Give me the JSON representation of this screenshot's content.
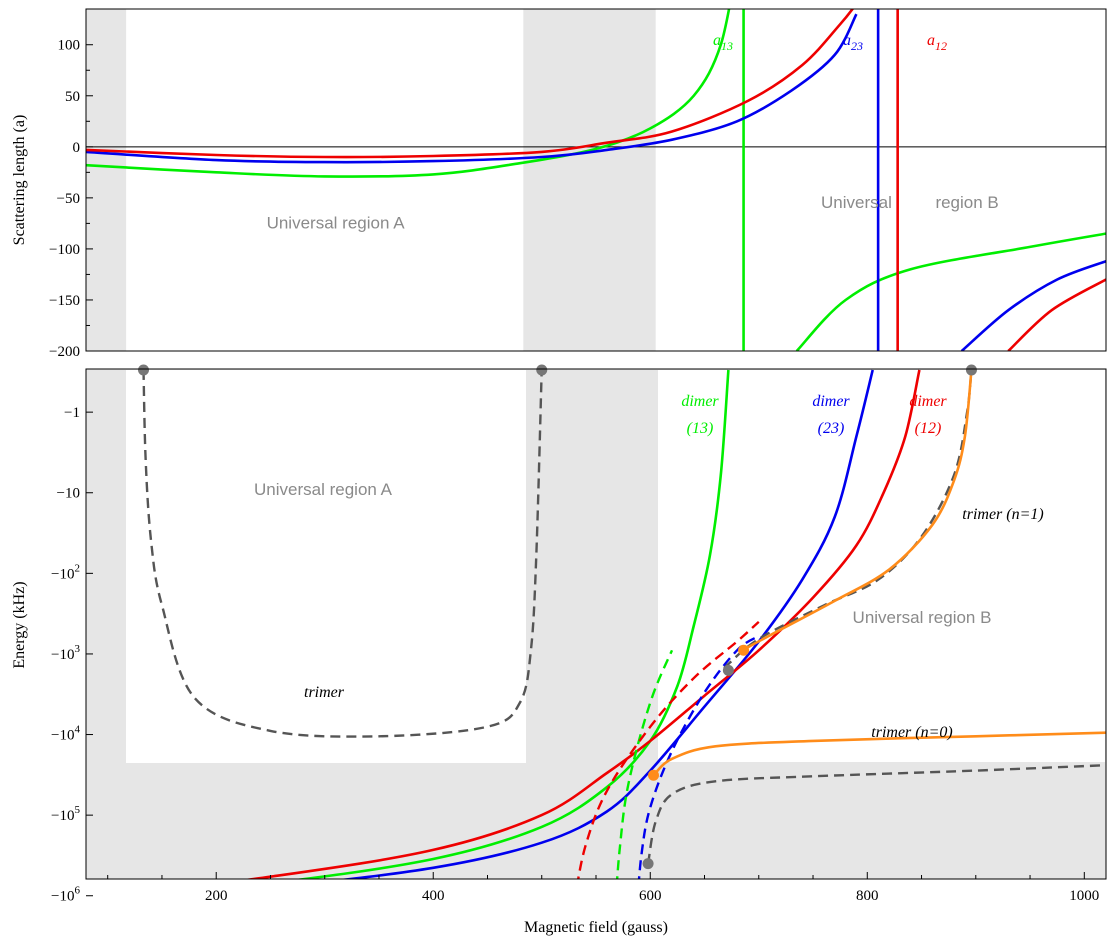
{
  "chart_data": [
    {
      "type": "line",
      "ylabel": "Scattering length (a)",
      "xlim": [
        80,
        1020
      ],
      "ylim": [
        -200,
        135
      ],
      "yticks": [
        100,
        50,
        0,
        -50,
        -100,
        -150,
        -200
      ],
      "grid": false,
      "shaded_x_ranges": [
        [
          80,
          117
        ],
        [
          483,
          605
        ]
      ],
      "region_labels": [
        {
          "text": "Universal region A",
          "x": 310,
          "y": -80
        },
        {
          "text": "Universal",
          "x": 790,
          "y": -60
        },
        {
          "text": "region B",
          "x": 892,
          "y": -60
        }
      ],
      "series": [
        {
          "name": "a13",
          "color": "#00ee00",
          "pole": 686,
          "left": [
            [
              80,
              -18
            ],
            [
              200,
              -25
            ],
            [
              300,
              -29
            ],
            [
              400,
              -27
            ],
            [
              480,
              -16
            ],
            [
              550,
              -2
            ],
            [
              600,
              18
            ],
            [
              640,
              50
            ],
            [
              665,
              100
            ],
            [
              680,
              180
            ]
          ],
          "right": [
            [
              735,
              -200
            ],
            [
              780,
              -150
            ],
            [
              840,
              -120
            ],
            [
              950,
              -98
            ],
            [
              1020,
              -85
            ]
          ]
        },
        {
          "name": "a23",
          "color": "#0000ee",
          "pole": 810,
          "left": [
            [
              80,
              -5
            ],
            [
              200,
              -13
            ],
            [
              300,
              -15
            ],
            [
              400,
              -14
            ],
            [
              500,
              -10
            ],
            [
              560,
              -3
            ],
            [
              620,
              7
            ],
            [
              680,
              25
            ],
            [
              730,
              55
            ],
            [
              770,
              90
            ],
            [
              790,
              130
            ]
          ],
          "right": [
            [
              887,
              -200
            ],
            [
              930,
              -160
            ],
            [
              975,
              -130
            ],
            [
              1020,
              -112
            ]
          ]
        },
        {
          "name": "a12",
          "color": "#ee0000",
          "pole": 828,
          "left": [
            [
              80,
              -3
            ],
            [
              200,
              -8
            ],
            [
              300,
              -10
            ],
            [
              400,
              -9
            ],
            [
              500,
              -5
            ],
            [
              560,
              4
            ],
            [
              620,
              15
            ],
            [
              690,
              45
            ],
            [
              740,
              80
            ],
            [
              775,
              120
            ],
            [
              790,
              140
            ]
          ],
          "right": [
            [
              930,
              -200
            ],
            [
              970,
              -160
            ],
            [
              1020,
              -130
            ]
          ]
        }
      ],
      "labels": [
        {
          "text": "a",
          "sub": "13",
          "color": "#00ee00"
        },
        {
          "text": "a",
          "sub": "23",
          "color": "#0000ee"
        },
        {
          "text": "a",
          "sub": "12",
          "color": "#ee0000"
        }
      ]
    },
    {
      "type": "line",
      "xlabel": "Magnetic field (gauss)",
      "ylabel": "Energy (kHz)",
      "xlim": [
        80,
        1020
      ],
      "y_scale": "symlog (energy is negative, magnitude logarithmic)",
      "xticks": [
        200,
        400,
        600,
        800,
        1000
      ],
      "yticks": [
        "-1",
        "-10",
        "-10^2",
        "-10^3",
        "-10^4",
        "-10^5",
        "-10^6"
      ],
      "grid": false,
      "region_labels": [
        "Universal region A",
        "Universal region B"
      ],
      "series": [
        {
          "name": "dimer (13)",
          "color": "#00ee00",
          "style": "solid",
          "points": [
            [
              80,
              -1200000.0
            ],
            [
              250,
              -700000.0
            ],
            [
              400,
              -350000.0
            ],
            [
              500,
              -140000.0
            ],
            [
              560,
              -45000.0
            ],
            [
              600,
              -12000.0
            ],
            [
              625,
              -2500
            ],
            [
              640,
              -450
            ],
            [
              655,
              -60
            ],
            [
              665,
              -6
            ],
            [
              672,
              -0.3
            ]
          ]
        },
        {
          "name": "dimer (23)",
          "color": "#0000ee",
          "style": "solid",
          "points": [
            [
              80,
              -1350000.0
            ],
            [
              250,
              -800000.0
            ],
            [
              400,
              -450000.0
            ],
            [
              500,
              -220000.0
            ],
            [
              560,
              -90000.0
            ],
            [
              600,
              -28000.0
            ],
            [
              650,
              -4500
            ],
            [
              700,
              -700
            ],
            [
              740,
              -120
            ],
            [
              770,
              -20
            ],
            [
              790,
              -2
            ],
            [
              805,
              -0.3
            ]
          ]
        },
        {
          "name": "dimer (12)",
          "color": "#ee0000",
          "style": "solid",
          "points": [
            [
              80,
              -1100000.0
            ],
            [
              250,
              -580000.0
            ],
            [
              400,
              -270000.0
            ],
            [
              500,
              -100000.0
            ],
            [
              560,
              -30000.0
            ],
            [
              600,
              -12000.0
            ],
            [
              650,
              -3300
            ],
            [
              700,
              -900
            ],
            [
              750,
              -200
            ],
            [
              790,
              -45
            ],
            [
              815,
              -10
            ],
            [
              835,
              -2
            ],
            [
              848,
              -0.3
            ]
          ]
        },
        {
          "name": "dimer (13) dashed",
          "color": "#00ee00",
          "style": "dashed",
          "points": [
            [
              568,
              -1200000.0
            ],
            [
              572,
              -250000.0
            ],
            [
              580,
              -40000.0
            ],
            [
              600,
              -4000.0
            ],
            [
              620,
              -900
            ]
          ]
        },
        {
          "name": "dimer (23) dashed",
          "color": "#0000ee",
          "style": "dashed",
          "points": [
            [
              588,
              -1200000.0
            ],
            [
              592,
              -300000.0
            ],
            [
              600,
              -80000.0
            ],
            [
              620,
              -16000.0
            ],
            [
              650,
              -3000
            ],
            [
              680,
              -900
            ],
            [
              700,
              -600
            ]
          ]
        },
        {
          "name": "dimer (12) dashed",
          "color": "#ee0000",
          "style": "dashed",
          "points": [
            [
              530,
              -1200000.0
            ],
            [
              540,
              -250000.0
            ],
            [
              560,
              -50000.0
            ],
            [
              600,
              -8000.0
            ],
            [
              640,
              -2000.0
            ],
            [
              680,
              -700
            ],
            [
              700,
              -400
            ]
          ]
        },
        {
          "name": "trimer (region A)",
          "color": "#555555",
          "style": "dashed",
          "points": [
            [
              133,
              -0.3
            ],
            [
              135,
              -4
            ],
            [
              140,
              -40
            ],
            [
              150,
              -250
            ],
            [
              180,
              -3500
            ],
            [
              250,
              -9000
            ],
            [
              350,
              -10500.0
            ],
            [
              450,
              -8000
            ],
            [
              480,
              -4000
            ],
            [
              490,
              -900
            ],
            [
              495,
              -60
            ],
            [
              500,
              -0.3
            ]
          ]
        },
        {
          "name": "trimer (n=0) dashed",
          "color": "#555555",
          "style": "dashed",
          "points": [
            [
              598,
              -400000.0
            ],
            [
              605,
              -120000.0
            ],
            [
              620,
              -55000.0
            ],
            [
              660,
              -38000.0
            ],
            [
              750,
              -33000.0
            ],
            [
              900,
              -28000.0
            ],
            [
              1020,
              -24000.0
            ]
          ]
        },
        {
          "name": "trimer (n=1) dashed",
          "color": "#555555",
          "style": "dashed",
          "points": [
            [
              668,
              -1500.0
            ],
            [
              700,
              -650
            ],
            [
              760,
              -250
            ],
            [
              810,
              -120
            ],
            [
              850,
              -35
            ],
            [
              880,
              -6
            ],
            [
              892,
              -1
            ],
            [
              896,
              -0.3
            ]
          ]
        },
        {
          "name": "trimer (n=0)",
          "color": "#ff8c1a",
          "style": "solid",
          "points": [
            [
              603,
              -32000.0
            ],
            [
              620,
              -20000.0
            ],
            [
              660,
              -14000.0
            ],
            [
              750,
              -12000.0
            ],
            [
              900,
              -10500.0
            ],
            [
              1020,
              -9500.0
            ]
          ]
        },
        {
          "name": "trimer (n=1)",
          "color": "#ff8c1a",
          "style": "solid",
          "points": [
            [
              685,
              -900
            ],
            [
              720,
              -500
            ],
            [
              770,
              -220
            ],
            [
              820,
              -90
            ],
            [
              860,
              -25
            ],
            [
              880,
              -7
            ],
            [
              890,
              -2
            ],
            [
              896,
              -0.3
            ]
          ]
        }
      ],
      "markers": [
        {
          "x": 133,
          "y": -0.3,
          "color": "#777777"
        },
        {
          "x": 500,
          "y": -0.3,
          "color": "#777777"
        },
        {
          "x": 896,
          "y": -0.3,
          "color": "#777777"
        },
        {
          "x": 598,
          "y": -400000.0,
          "color": "#777777"
        },
        {
          "x": 672,
          "y": -1600.0,
          "color": "#777777"
        },
        {
          "x": 603,
          "y": -32000.0,
          "color": "#ff8c1a"
        },
        {
          "x": 686,
          "y": -900,
          "color": "#ff8c1a"
        }
      ],
      "annotations": [
        {
          "text": "dimer",
          "color": "#00ee00"
        },
        {
          "text": "(13)",
          "color": "#00ee00"
        },
        {
          "text": "dimer",
          "color": "#0000ee"
        },
        {
          "text": "(23)",
          "color": "#0000ee"
        },
        {
          "text": "dimer",
          "color": "#ee0000"
        },
        {
          "text": "(12)",
          "color": "#ee0000"
        },
        {
          "text": "trimer",
          "color": "#000000"
        },
        {
          "text": "trimer (n=1)",
          "color": "#000000"
        },
        {
          "text": "trimer (n=0)",
          "color": "#000000"
        }
      ]
    }
  ]
}
